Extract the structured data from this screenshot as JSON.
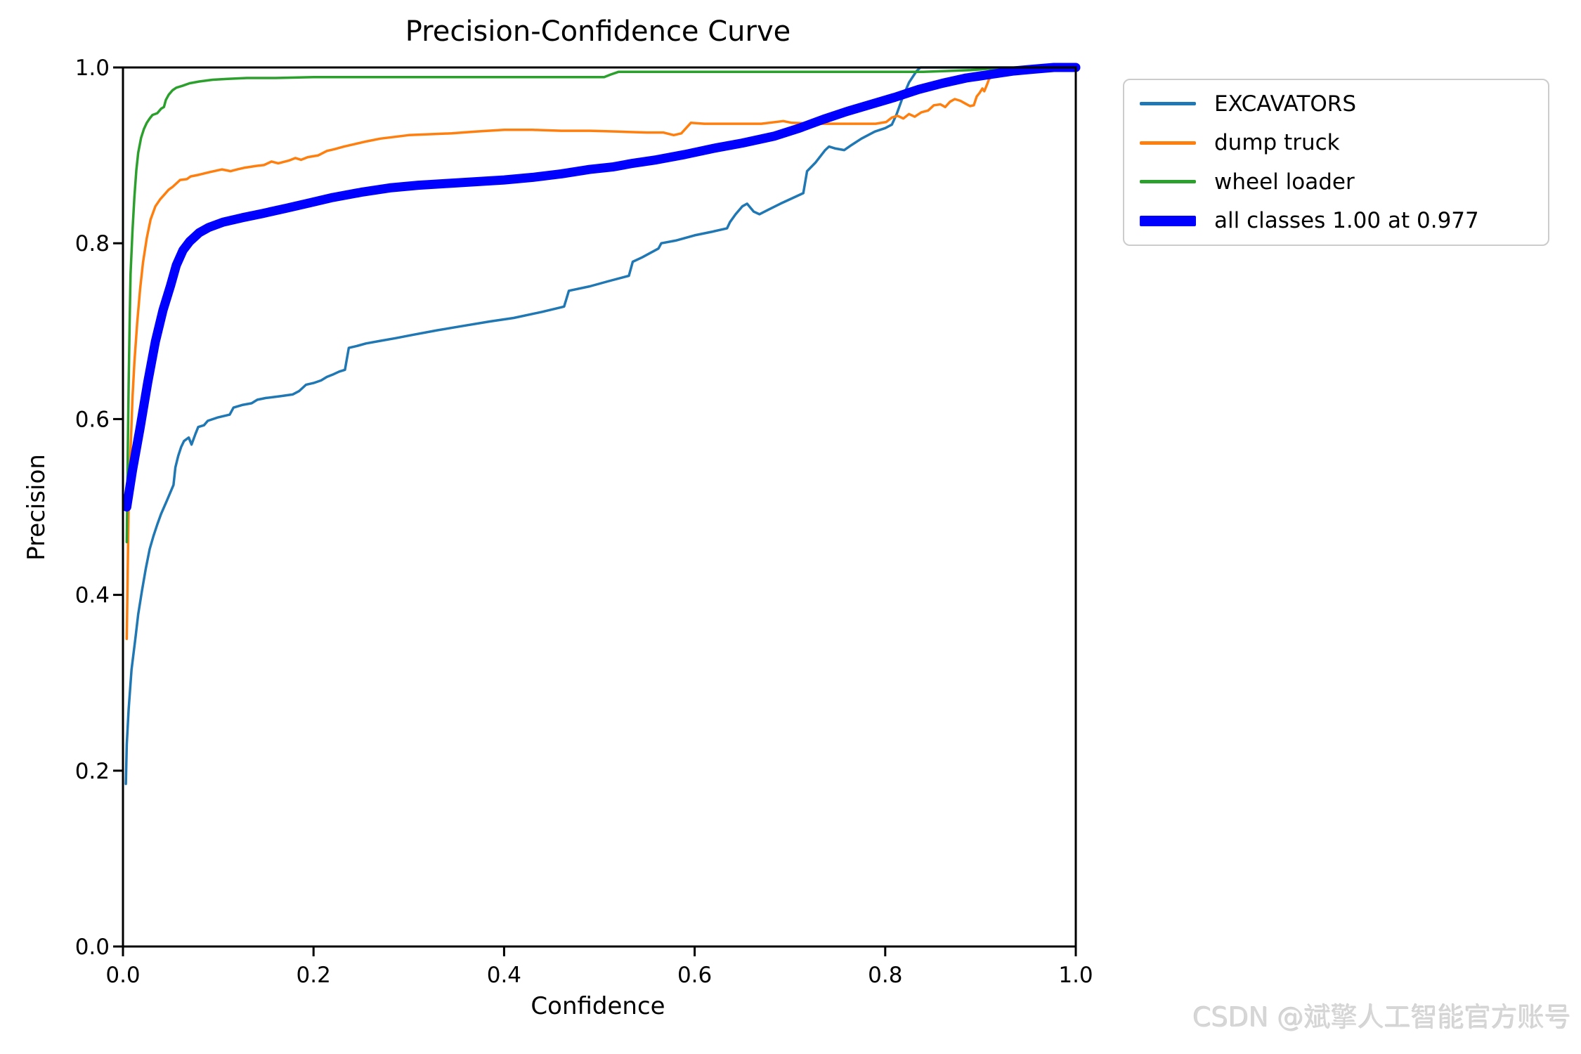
{
  "title": "Precision-Confidence Curve",
  "watermark": "CSDN @斌擎人工智能官方账号",
  "axes": {
    "xlabel": "Confidence",
    "ylabel": "Precision"
  },
  "chart_data": {
    "type": "line",
    "title": "Precision-Confidence Curve",
    "xlabel": "Confidence",
    "ylabel": "Precision",
    "xlim": [
      0.0,
      1.0
    ],
    "ylim": [
      0.0,
      1.0
    ],
    "grid": false,
    "legend_position": "outside upper right",
    "legend_border_color": "#cccccc",
    "xticks": [
      0.0,
      0.2,
      0.4,
      0.6,
      0.8,
      1.0
    ],
    "xtick_labels": [
      "0.0",
      "0.2",
      "0.4",
      "0.6",
      "0.8",
      "1.0"
    ],
    "yticks": [
      0.0,
      0.2,
      0.4,
      0.6,
      0.8,
      1.0
    ],
    "ytick_labels": [
      "0.0",
      "0.2",
      "0.4",
      "0.6",
      "0.8",
      "1.0"
    ],
    "series": [
      {
        "name": "EXCAVATORS",
        "color": "#1f77b4",
        "stroke_width": 3.5,
        "points": [
          [
            0.003,
            0.185
          ],
          [
            0.004,
            0.23
          ],
          [
            0.006,
            0.27
          ],
          [
            0.009,
            0.315
          ],
          [
            0.013,
            0.35
          ],
          [
            0.016,
            0.378
          ],
          [
            0.02,
            0.405
          ],
          [
            0.024,
            0.43
          ],
          [
            0.028,
            0.452
          ],
          [
            0.032,
            0.467
          ],
          [
            0.036,
            0.48
          ],
          [
            0.04,
            0.492
          ],
          [
            0.046,
            0.507
          ],
          [
            0.053,
            0.525
          ],
          [
            0.055,
            0.545
          ],
          [
            0.058,
            0.558
          ],
          [
            0.061,
            0.568
          ],
          [
            0.064,
            0.575
          ],
          [
            0.069,
            0.579
          ],
          [
            0.072,
            0.571
          ],
          [
            0.076,
            0.583
          ],
          [
            0.079,
            0.591
          ],
          [
            0.085,
            0.593
          ],
          [
            0.089,
            0.598
          ],
          [
            0.1,
            0.602
          ],
          [
            0.112,
            0.605
          ],
          [
            0.116,
            0.613
          ],
          [
            0.125,
            0.616
          ],
          [
            0.135,
            0.618
          ],
          [
            0.141,
            0.622
          ],
          [
            0.15,
            0.624
          ],
          [
            0.165,
            0.626
          ],
          [
            0.178,
            0.628
          ],
          [
            0.185,
            0.632
          ],
          [
            0.192,
            0.639
          ],
          [
            0.2,
            0.641
          ],
          [
            0.208,
            0.644
          ],
          [
            0.214,
            0.648
          ],
          [
            0.221,
            0.651
          ],
          [
            0.227,
            0.654
          ],
          [
            0.233,
            0.656
          ],
          [
            0.237,
            0.681
          ],
          [
            0.245,
            0.683
          ],
          [
            0.255,
            0.686
          ],
          [
            0.27,
            0.689
          ],
          [
            0.286,
            0.692
          ],
          [
            0.305,
            0.696
          ],
          [
            0.33,
            0.701
          ],
          [
            0.357,
            0.706
          ],
          [
            0.385,
            0.711
          ],
          [
            0.41,
            0.715
          ],
          [
            0.44,
            0.722
          ],
          [
            0.463,
            0.728
          ],
          [
            0.468,
            0.746
          ],
          [
            0.49,
            0.751
          ],
          [
            0.51,
            0.757
          ],
          [
            0.531,
            0.763
          ],
          [
            0.535,
            0.779
          ],
          [
            0.545,
            0.784
          ],
          [
            0.562,
            0.794
          ],
          [
            0.565,
            0.8
          ],
          [
            0.58,
            0.803
          ],
          [
            0.6,
            0.809
          ],
          [
            0.618,
            0.813
          ],
          [
            0.634,
            0.817
          ],
          [
            0.637,
            0.824
          ],
          [
            0.643,
            0.833
          ],
          [
            0.65,
            0.842
          ],
          [
            0.655,
            0.845
          ],
          [
            0.662,
            0.836
          ],
          [
            0.668,
            0.833
          ],
          [
            0.677,
            0.838
          ],
          [
            0.69,
            0.845
          ],
          [
            0.702,
            0.851
          ],
          [
            0.714,
            0.857
          ],
          [
            0.718,
            0.882
          ],
          [
            0.727,
            0.892
          ],
          [
            0.737,
            0.906
          ],
          [
            0.741,
            0.91
          ],
          [
            0.747,
            0.908
          ],
          [
            0.757,
            0.906
          ],
          [
            0.765,
            0.912
          ],
          [
            0.775,
            0.919
          ],
          [
            0.789,
            0.927
          ],
          [
            0.8,
            0.931
          ],
          [
            0.807,
            0.935
          ],
          [
            0.812,
            0.947
          ],
          [
            0.818,
            0.965
          ],
          [
            0.825,
            0.983
          ],
          [
            0.833,
            0.996
          ],
          [
            0.837,
            1.0
          ],
          [
            1.0,
            1.0
          ]
        ]
      },
      {
        "name": "dump truck",
        "color": "#ff7f0e",
        "stroke_width": 3.5,
        "points": [
          [
            0.004,
            0.35
          ],
          [
            0.005,
            0.43
          ],
          [
            0.006,
            0.5
          ],
          [
            0.008,
            0.565
          ],
          [
            0.01,
            0.625
          ],
          [
            0.012,
            0.665
          ],
          [
            0.015,
            0.71
          ],
          [
            0.018,
            0.748
          ],
          [
            0.021,
            0.778
          ],
          [
            0.025,
            0.806
          ],
          [
            0.029,
            0.827
          ],
          [
            0.034,
            0.842
          ],
          [
            0.039,
            0.85
          ],
          [
            0.044,
            0.856
          ],
          [
            0.048,
            0.861
          ],
          [
            0.052,
            0.864
          ],
          [
            0.056,
            0.868
          ],
          [
            0.06,
            0.872
          ],
          [
            0.067,
            0.873
          ],
          [
            0.071,
            0.876
          ],
          [
            0.08,
            0.878
          ],
          [
            0.091,
            0.881
          ],
          [
            0.104,
            0.884
          ],
          [
            0.113,
            0.882
          ],
          [
            0.12,
            0.884
          ],
          [
            0.128,
            0.886
          ],
          [
            0.14,
            0.888
          ],
          [
            0.148,
            0.889
          ],
          [
            0.156,
            0.893
          ],
          [
            0.163,
            0.891
          ],
          [
            0.174,
            0.894
          ],
          [
            0.181,
            0.897
          ],
          [
            0.187,
            0.895
          ],
          [
            0.194,
            0.898
          ],
          [
            0.205,
            0.9
          ],
          [
            0.214,
            0.905
          ],
          [
            0.222,
            0.907
          ],
          [
            0.232,
            0.91
          ],
          [
            0.244,
            0.913
          ],
          [
            0.256,
            0.916
          ],
          [
            0.27,
            0.919
          ],
          [
            0.285,
            0.921
          ],
          [
            0.3,
            0.923
          ],
          [
            0.32,
            0.924
          ],
          [
            0.345,
            0.925
          ],
          [
            0.37,
            0.927
          ],
          [
            0.4,
            0.929
          ],
          [
            0.43,
            0.929
          ],
          [
            0.46,
            0.928
          ],
          [
            0.49,
            0.928
          ],
          [
            0.52,
            0.927
          ],
          [
            0.55,
            0.926
          ],
          [
            0.567,
            0.926
          ],
          [
            0.578,
            0.923
          ],
          [
            0.586,
            0.925
          ],
          [
            0.596,
            0.937
          ],
          [
            0.61,
            0.936
          ],
          [
            0.64,
            0.936
          ],
          [
            0.67,
            0.936
          ],
          [
            0.693,
            0.939
          ],
          [
            0.702,
            0.937
          ],
          [
            0.73,
            0.936
          ],
          [
            0.76,
            0.936
          ],
          [
            0.79,
            0.936
          ],
          [
            0.801,
            0.938
          ],
          [
            0.807,
            0.943
          ],
          [
            0.813,
            0.945
          ],
          [
            0.819,
            0.942
          ],
          [
            0.825,
            0.947
          ],
          [
            0.831,
            0.944
          ],
          [
            0.838,
            0.949
          ],
          [
            0.845,
            0.951
          ],
          [
            0.851,
            0.957
          ],
          [
            0.858,
            0.958
          ],
          [
            0.863,
            0.955
          ],
          [
            0.868,
            0.961
          ],
          [
            0.873,
            0.964
          ],
          [
            0.879,
            0.962
          ],
          [
            0.884,
            0.959
          ],
          [
            0.889,
            0.956
          ],
          [
            0.893,
            0.957
          ],
          [
            0.896,
            0.967
          ],
          [
            0.899,
            0.971
          ],
          [
            0.902,
            0.976
          ],
          [
            0.904,
            0.973
          ],
          [
            0.907,
            0.981
          ],
          [
            0.909,
            0.987
          ],
          [
            0.912,
            0.989
          ],
          [
            0.918,
            0.991
          ],
          [
            0.926,
            0.994
          ],
          [
            0.94,
            0.997
          ],
          [
            0.958,
            0.999
          ],
          [
            0.977,
            1.0
          ],
          [
            1.0,
            1.0
          ]
        ]
      },
      {
        "name": "wheel loader",
        "color": "#2ca02c",
        "stroke_width": 3.5,
        "points": [
          [
            0.004,
            0.46
          ],
          [
            0.005,
            0.56
          ],
          [
            0.006,
            0.64
          ],
          [
            0.007,
            0.71
          ],
          [
            0.008,
            0.765
          ],
          [
            0.01,
            0.815
          ],
          [
            0.012,
            0.853
          ],
          [
            0.014,
            0.883
          ],
          [
            0.016,
            0.903
          ],
          [
            0.019,
            0.92
          ],
          [
            0.022,
            0.93
          ],
          [
            0.025,
            0.937
          ],
          [
            0.028,
            0.942
          ],
          [
            0.031,
            0.946
          ],
          [
            0.036,
            0.948
          ],
          [
            0.04,
            0.953
          ],
          [
            0.043,
            0.955
          ],
          [
            0.045,
            0.963
          ],
          [
            0.048,
            0.969
          ],
          [
            0.052,
            0.974
          ],
          [
            0.056,
            0.977
          ],
          [
            0.062,
            0.979
          ],
          [
            0.07,
            0.982
          ],
          [
            0.08,
            0.984
          ],
          [
            0.094,
            0.986
          ],
          [
            0.11,
            0.987
          ],
          [
            0.13,
            0.988
          ],
          [
            0.16,
            0.988
          ],
          [
            0.2,
            0.989
          ],
          [
            0.26,
            0.989
          ],
          [
            0.32,
            0.989
          ],
          [
            0.4,
            0.989
          ],
          [
            0.46,
            0.989
          ],
          [
            0.505,
            0.989
          ],
          [
            0.512,
            0.992
          ],
          [
            0.52,
            0.995
          ],
          [
            0.6,
            0.995
          ],
          [
            0.7,
            0.995
          ],
          [
            0.8,
            0.995
          ],
          [
            0.84,
            0.995
          ],
          [
            0.866,
            0.996
          ],
          [
            0.89,
            0.997
          ],
          [
            0.915,
            0.999
          ],
          [
            0.94,
            1.0
          ],
          [
            1.0,
            1.0
          ]
        ]
      },
      {
        "name": "all classes 1.00 at 0.977",
        "color": "#0000ff",
        "stroke_width": 13,
        "points": [
          [
            0.004,
            0.5
          ],
          [
            0.01,
            0.542
          ],
          [
            0.018,
            0.59
          ],
          [
            0.026,
            0.642
          ],
          [
            0.034,
            0.688
          ],
          [
            0.042,
            0.724
          ],
          [
            0.05,
            0.752
          ],
          [
            0.056,
            0.775
          ],
          [
            0.063,
            0.792
          ],
          [
            0.07,
            0.802
          ],
          [
            0.08,
            0.812
          ],
          [
            0.09,
            0.818
          ],
          [
            0.105,
            0.824
          ],
          [
            0.125,
            0.829
          ],
          [
            0.147,
            0.834
          ],
          [
            0.172,
            0.84
          ],
          [
            0.196,
            0.846
          ],
          [
            0.22,
            0.852
          ],
          [
            0.25,
            0.858
          ],
          [
            0.28,
            0.863
          ],
          [
            0.31,
            0.866
          ],
          [
            0.34,
            0.868
          ],
          [
            0.37,
            0.87
          ],
          [
            0.4,
            0.872
          ],
          [
            0.43,
            0.875
          ],
          [
            0.46,
            0.879
          ],
          [
            0.49,
            0.884
          ],
          [
            0.515,
            0.887
          ],
          [
            0.535,
            0.891
          ],
          [
            0.56,
            0.895
          ],
          [
            0.59,
            0.901
          ],
          [
            0.62,
            0.908
          ],
          [
            0.65,
            0.914
          ],
          [
            0.684,
            0.922
          ],
          [
            0.71,
            0.931
          ],
          [
            0.735,
            0.941
          ],
          [
            0.76,
            0.95
          ],
          [
            0.785,
            0.958
          ],
          [
            0.81,
            0.966
          ],
          [
            0.835,
            0.975
          ],
          [
            0.86,
            0.982
          ],
          [
            0.885,
            0.988
          ],
          [
            0.91,
            0.992
          ],
          [
            0.935,
            0.996
          ],
          [
            0.955,
            0.998
          ],
          [
            0.977,
            1.0
          ],
          [
            1.0,
            1.0
          ]
        ]
      }
    ]
  }
}
